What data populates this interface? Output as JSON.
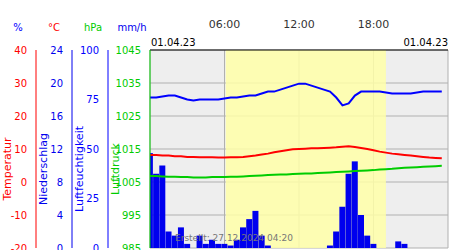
{
  "chart_data": {
    "type": "line",
    "grid": true,
    "x": [
      0,
      0.5,
      1,
      1.5,
      2,
      2.5,
      3,
      3.5,
      4,
      4.5,
      5,
      5.5,
      6,
      6.5,
      7,
      7.5,
      8,
      8.5,
      9,
      9.5,
      10,
      10.5,
      11,
      11.5,
      12,
      12.5,
      13,
      13.5,
      14,
      14.5,
      15,
      15.5,
      16,
      16.5,
      17,
      17.5,
      18,
      18.5,
      19,
      19.5,
      20,
      20.5,
      21,
      21.5,
      22,
      22.5,
      23,
      23.5
    ],
    "xlim": [
      0,
      24
    ],
    "xticks": [
      {
        "value": 6,
        "label": "06:00"
      },
      {
        "value": 12,
        "label": "12:00"
      },
      {
        "value": 18,
        "label": "18:00"
      }
    ],
    "daylight": [
      6.1,
      19.0
    ],
    "annotations": [
      "01.04.23",
      "01.04.23",
      "Erstellt: 27.12.2024 04:20"
    ],
    "axes": [
      {
        "id": "h",
        "unit": "%",
        "ylim": [
          0,
          100
        ],
        "yticks": [
          0,
          25,
          50,
          75,
          100
        ]
      },
      {
        "id": "t",
        "unit": "°C",
        "ylim": [
          -20,
          40
        ],
        "yticks": [
          -20,
          -10,
          0,
          10,
          20,
          30,
          40
        ]
      },
      {
        "id": "d",
        "unit": "hPa",
        "ylim": [
          985,
          1045
        ],
        "yticks": [
          985,
          995,
          1005,
          1015,
          1025,
          1035,
          1045
        ]
      },
      {
        "id": "p",
        "unit": "mm/h",
        "ylim": [
          0,
          24
        ],
        "yticks": [
          0,
          4,
          8,
          12,
          16,
          20,
          24
        ]
      }
    ],
    "series": [
      {
        "name": "Luftfeuchtigkeit",
        "type": "line",
        "axis": "h",
        "color": "#0000ff",
        "values": [
          76,
          76,
          76.5,
          77,
          77,
          76,
          75,
          74.5,
          75,
          75,
          75,
          75,
          75.5,
          76,
          76,
          76.5,
          77,
          77,
          78,
          79,
          79,
          80,
          81,
          82,
          83,
          83,
          82,
          81,
          80,
          79,
          76,
          72,
          73,
          77,
          79,
          79,
          79,
          79,
          78.5,
          78,
          78,
          78,
          78,
          78.5,
          79,
          79,
          79,
          79
        ]
      },
      {
        "name": "Temperatur",
        "type": "line",
        "axis": "t",
        "color": "#ff0000",
        "values": [
          8.2,
          8.2,
          8,
          8,
          7.8,
          7.8,
          7.6,
          7.6,
          7.5,
          7.5,
          7.5,
          7.4,
          7.4,
          7.5,
          7.5,
          7.6,
          7.8,
          8,
          8.3,
          8.6,
          9,
          9.3,
          9.6,
          9.9,
          10,
          10.1,
          10.2,
          10.2,
          10.3,
          10.4,
          10.5,
          10.7,
          10.8,
          10.6,
          10.3,
          10,
          9.6,
          9.2,
          8.9,
          8.6,
          8.4,
          8.2,
          8,
          7.8,
          7.6,
          7.4,
          7.3,
          7.2
        ]
      },
      {
        "name": "Luftdruck",
        "type": "line",
        "axis": "d",
        "color": "#00cc00",
        "values": [
          1006.8,
          1006.8,
          1006.7,
          1006.6,
          1006.6,
          1006.5,
          1006.5,
          1006.4,
          1006.4,
          1006.4,
          1006.5,
          1006.5,
          1006.5,
          1006.6,
          1006.6,
          1006.7,
          1006.8,
          1006.9,
          1007,
          1007.1,
          1007.2,
          1007.3,
          1007.3,
          1007.4,
          1007.5,
          1007.6,
          1007.6,
          1007.7,
          1007.8,
          1007.9,
          1008,
          1008.1,
          1008.2,
          1008.3,
          1008.4,
          1008.5,
          1008.6,
          1008.8,
          1008.9,
          1009,
          1009.2,
          1009.3,
          1009.4,
          1009.5,
          1009.6,
          1009.7,
          1009.8,
          1009.9
        ]
      },
      {
        "name": "Niederschlag",
        "type": "bar",
        "axis": "p",
        "color": "#0000ee",
        "values": [
          11.5,
          9,
          10,
          2,
          1.5,
          2.5,
          0.5,
          0,
          1.5,
          0.5,
          1,
          0.5,
          0.5,
          0.3,
          1,
          2.5,
          3.5,
          4.5,
          1.5,
          0.3,
          0,
          0,
          0,
          0,
          0,
          0,
          0,
          0,
          0,
          0.3,
          2,
          5,
          9,
          10.5,
          4,
          1.5,
          0.5,
          0,
          0,
          0,
          0.8,
          0.5,
          0,
          0,
          0,
          0,
          0,
          0
        ]
      }
    ]
  }
}
